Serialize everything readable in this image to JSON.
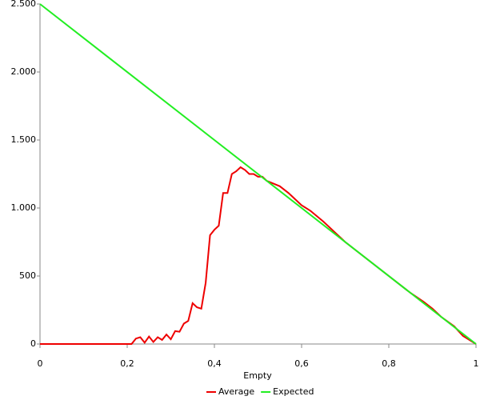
{
  "chart_data": {
    "type": "line",
    "x_label": "Empty",
    "xlim": [
      0,
      1
    ],
    "xticks": [
      0,
      {
        "value": 0.2,
        "label": "0,2"
      },
      {
        "value": 0.4,
        "label": "0,4"
      },
      {
        "value": 0.6,
        "label": "0,6"
      },
      {
        "value": 0.8,
        "label": "0,8"
      },
      1
    ],
    "ylim": [
      0,
      2500
    ],
    "yticks": [
      0,
      500,
      {
        "value": 1000,
        "label": "1.000"
      },
      {
        "value": 1500,
        "label": "1.500"
      },
      {
        "value": 2000,
        "label": "2.000"
      },
      {
        "value": 2500,
        "label": "2.500"
      }
    ],
    "series": [
      {
        "name": "Average",
        "color": "#ee0000",
        "x": [
          0,
          0.21,
          0.22,
          0.23,
          0.24,
          0.25,
          0.26,
          0.27,
          0.28,
          0.29,
          0.3,
          0.31,
          0.32,
          0.33,
          0.34,
          0.35,
          0.36,
          0.37,
          0.38,
          0.39,
          0.4,
          0.41,
          0.42,
          0.43,
          0.44,
          0.45,
          0.46,
          0.47,
          0.48,
          0.49,
          0.5,
          0.51,
          0.52,
          0.55,
          0.57,
          0.58,
          0.6,
          0.62,
          0.65,
          0.68,
          0.7,
          0.75,
          0.8,
          0.85,
          0.88,
          0.9,
          0.92,
          0.95,
          0.97,
          1.0
        ],
        "values": [
          0,
          0,
          40,
          50,
          10,
          55,
          15,
          50,
          30,
          70,
          35,
          95,
          90,
          150,
          170,
          300,
          270,
          260,
          450,
          800,
          840,
          870,
          1110,
          1110,
          1250,
          1270,
          1300,
          1280,
          1250,
          1250,
          1230,
          1230,
          1200,
          1160,
          1110,
          1080,
          1020,
          980,
          900,
          810,
          750,
          625,
          500,
          375,
          310,
          260,
          200,
          130,
          60,
          0
        ]
      },
      {
        "name": "Expected",
        "color": "#22ee22",
        "x": [
          0,
          1
        ],
        "values": [
          2500,
          0
        ]
      }
    ]
  }
}
